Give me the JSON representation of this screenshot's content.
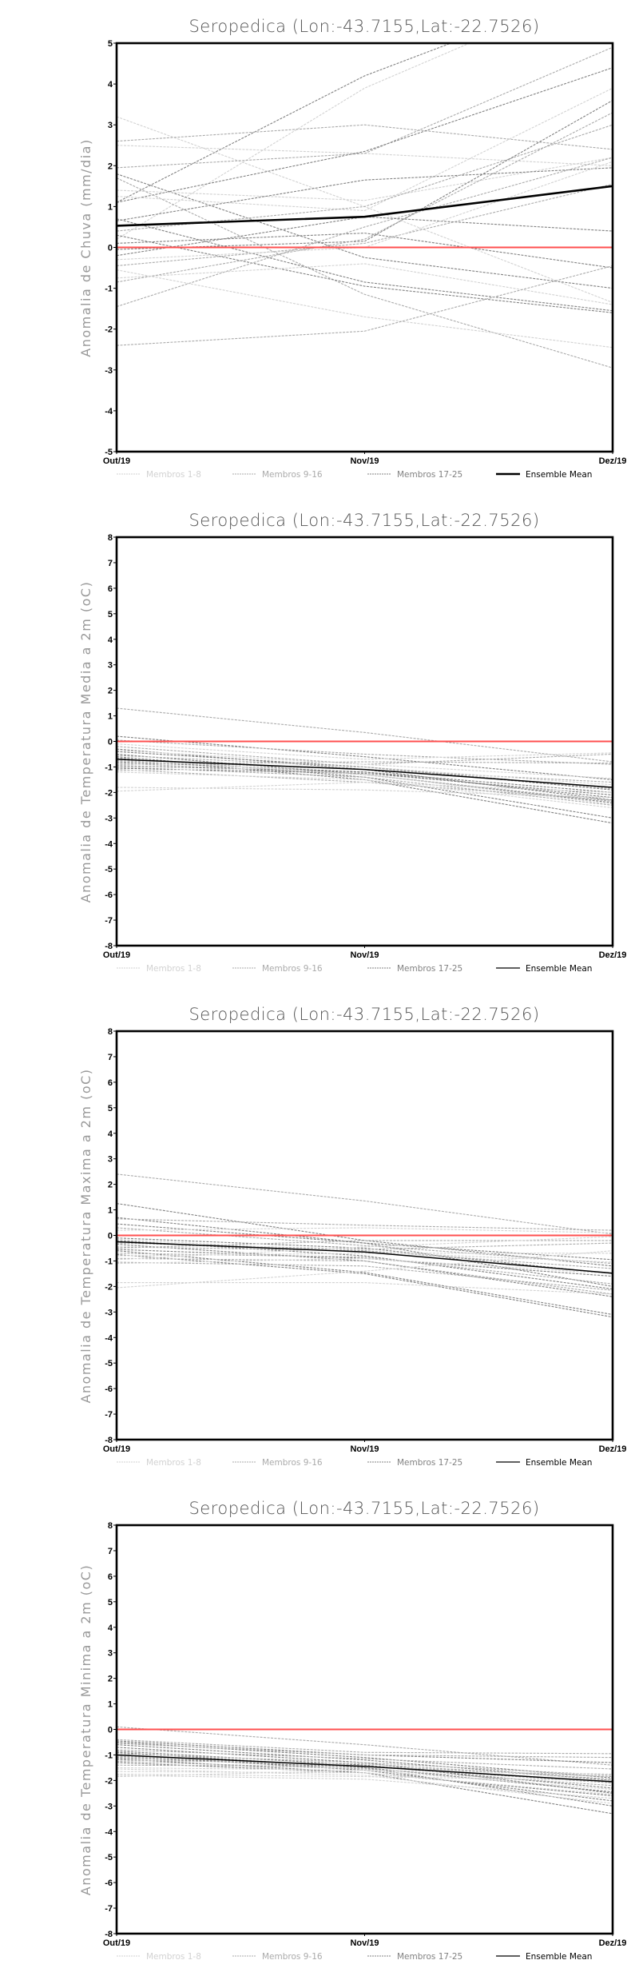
{
  "chart_data": [
    {
      "type": "line",
      "title": "Seropedica (Lon:-43.7155,Lat:-22.7526)",
      "ylabel": "Anomalia de Chuva (mm/dia)",
      "x": [
        "Out/19",
        "Nov/19",
        "Dez/19"
      ],
      "ylim": [
        -5,
        5
      ],
      "legend": [
        "Membros 1-8",
        "Membros 9-16",
        "Membros 17-25",
        "Ensemble Mean"
      ],
      "mean_bold": true,
      "ensemble_mean": [
        0.53,
        0.75,
        1.5
      ],
      "reference_line": 0,
      "members": [
        {
          "g": 2,
          "v": [
            1.1,
            4.2,
            6.5
          ]
        },
        {
          "g": 0,
          "v": [
            0.2,
            3.9,
            6.5
          ]
        },
        {
          "g": 0,
          "v": [
            3.2,
            1.0,
            -1.35
          ]
        },
        {
          "g": 1,
          "v": [
            2.6,
            3.0,
            2.4
          ]
        },
        {
          "g": 0,
          "v": [
            2.5,
            2.3,
            2.0
          ]
        },
        {
          "g": 1,
          "v": [
            1.95,
            2.3,
            4.9
          ]
        },
        {
          "g": 2,
          "v": [
            1.1,
            2.35,
            4.4
          ]
        },
        {
          "g": 2,
          "v": [
            1.8,
            -0.25,
            -1.0
          ]
        },
        {
          "g": 1,
          "v": [
            1.7,
            -1.15,
            -2.95
          ]
        },
        {
          "g": 0,
          "v": [
            1.4,
            1.15,
            2.2
          ]
        },
        {
          "g": 0,
          "v": [
            1.25,
            0.9,
            3.9
          ]
        },
        {
          "g": 2,
          "v": [
            0.65,
            1.65,
            1.95
          ]
        },
        {
          "g": 1,
          "v": [
            0.4,
            1.0,
            3.0
          ]
        },
        {
          "g": 2,
          "v": [
            0.7,
            -0.85,
            -1.55
          ]
        },
        {
          "g": 2,
          "v": [
            0.3,
            -0.95,
            -1.6
          ]
        },
        {
          "g": 2,
          "v": [
            0.1,
            0.35,
            -0.5
          ]
        },
        {
          "g": 2,
          "v": [
            -0.05,
            0.15,
            3.6
          ]
        },
        {
          "g": 1,
          "v": [
            -1.45,
            0.5,
            2.2
          ]
        },
        {
          "g": 2,
          "v": [
            -0.2,
            0.75,
            0.4
          ]
        },
        {
          "g": 1,
          "v": [
            -0.45,
            0.1,
            1.55
          ]
        },
        {
          "g": 0,
          "v": [
            -0.75,
            -0.4,
            -1.4
          ]
        },
        {
          "g": 1,
          "v": [
            -0.85,
            0.2,
            3.3
          ]
        },
        {
          "g": 0,
          "v": [
            -0.55,
            -1.7,
            -2.45
          ]
        },
        {
          "g": 1,
          "v": [
            -2.4,
            -2.05,
            -0.45
          ]
        },
        {
          "g": 0,
          "v": [
            -0.3,
            0.0,
            2.1
          ]
        }
      ]
    },
    {
      "type": "line",
      "title": "Seropedica (Lon:-43.7155,Lat:-22.7526)",
      "ylabel": "Anomalia de Temperatura Media a 2m (oC)",
      "x": [
        "Out/19",
        "Nov/19",
        "Dez/19"
      ],
      "ylim": [
        -8,
        8
      ],
      "legend": [
        "Membros 1-8",
        "Membros 9-16",
        "Membros 17-25",
        "Ensemble Mean"
      ],
      "mean_bold": false,
      "ensemble_mean": [
        -0.7,
        -1.1,
        -1.8
      ],
      "reference_line": 0,
      "members": [
        {
          "g": 1,
          "v": [
            1.3,
            0.35,
            -0.8
          ]
        },
        {
          "g": 2,
          "v": [
            0.2,
            -0.6,
            -1.5
          ]
        },
        {
          "g": 1,
          "v": [
            0.05,
            -0.5,
            -0.9
          ]
        },
        {
          "g": 0,
          "v": [
            -0.1,
            -0.7,
            -0.45
          ]
        },
        {
          "g": 1,
          "v": [
            -0.2,
            -0.9,
            -0.5
          ]
        },
        {
          "g": 2,
          "v": [
            -0.3,
            -1.1,
            -2.3
          ]
        },
        {
          "g": 2,
          "v": [
            -0.4,
            -1.0,
            -1.9
          ]
        },
        {
          "g": 2,
          "v": [
            -0.5,
            -1.3,
            -2.4
          ]
        },
        {
          "g": 2,
          "v": [
            -0.6,
            -1.4,
            -3.0
          ]
        },
        {
          "g": 2,
          "v": [
            -0.65,
            -1.5,
            -3.2
          ]
        },
        {
          "g": 1,
          "v": [
            -0.75,
            -1.1,
            -1.6
          ]
        },
        {
          "g": 2,
          "v": [
            -0.8,
            -1.2,
            -2.2
          ]
        },
        {
          "g": 1,
          "v": [
            -0.85,
            -1.3,
            -2.35
          ]
        },
        {
          "g": 1,
          "v": [
            -0.9,
            -0.8,
            -0.85
          ]
        },
        {
          "g": 2,
          "v": [
            -0.95,
            -1.2,
            -2.0
          ]
        },
        {
          "g": 1,
          "v": [
            -1.0,
            -1.4,
            -2.5
          ]
        },
        {
          "g": 2,
          "v": [
            -1.05,
            -1.25,
            -2.1
          ]
        },
        {
          "g": 1,
          "v": [
            -1.1,
            -1.6,
            -2.3
          ]
        },
        {
          "g": 0,
          "v": [
            -1.15,
            -1.0,
            -1.7
          ]
        },
        {
          "g": 0,
          "v": [
            -1.2,
            -1.5,
            -2.6
          ]
        },
        {
          "g": 0,
          "v": [
            -0.7,
            -1.3,
            -2.45
          ]
        },
        {
          "g": 0,
          "v": [
            -1.8,
            -1.9,
            -2.2
          ]
        },
        {
          "g": 0,
          "v": [
            -1.95,
            -1.6,
            -2.0
          ]
        },
        {
          "g": 0,
          "v": [
            -0.35,
            -0.9,
            -1.45
          ]
        },
        {
          "g": 1,
          "v": [
            -0.55,
            -1.0,
            -1.85
          ]
        }
      ]
    },
    {
      "type": "line",
      "title": "Seropedica (Lon:-43.7155,Lat:-22.7526)",
      "ylabel": "Anomalia de Temperatura Maxima a 2m (oC)",
      "x": [
        "Out/19",
        "Nov/19",
        "Dez/19"
      ],
      "ylim": [
        -8,
        8
      ],
      "legend": [
        "Membros 1-8",
        "Membros 9-16",
        "Membros 17-25",
        "Ensemble Mean"
      ],
      "mean_bold": false,
      "ensemble_mean": [
        -0.25,
        -0.65,
        -1.48
      ],
      "reference_line": 0,
      "members": [
        {
          "g": 1,
          "v": [
            2.4,
            1.35,
            0.05
          ]
        },
        {
          "g": 2,
          "v": [
            1.25,
            -0.2,
            -1.2
          ]
        },
        {
          "g": 2,
          "v": [
            0.7,
            -0.3,
            -0.95
          ]
        },
        {
          "g": 1,
          "v": [
            0.65,
            0.4,
            0.2
          ]
        },
        {
          "g": 2,
          "v": [
            0.45,
            -0.3,
            -2.0
          ]
        },
        {
          "g": 1,
          "v": [
            0.3,
            -0.4,
            -1.1
          ]
        },
        {
          "g": 0,
          "v": [
            0.2,
            0.3,
            0.1
          ]
        },
        {
          "g": 2,
          "v": [
            -0.1,
            -0.5,
            -1.5
          ]
        },
        {
          "g": 2,
          "v": [
            -0.2,
            -0.8,
            -2.1
          ]
        },
        {
          "g": 1,
          "v": [
            -0.3,
            -0.55,
            -0.3
          ]
        },
        {
          "g": 2,
          "v": [
            -0.35,
            -1.0,
            -2.4
          ]
        },
        {
          "g": 1,
          "v": [
            -0.45,
            -0.6,
            -1.3
          ]
        },
        {
          "g": 1,
          "v": [
            -0.5,
            -0.2,
            -0.2
          ]
        },
        {
          "g": 2,
          "v": [
            -0.55,
            -0.9,
            -1.6
          ]
        },
        {
          "g": 2,
          "v": [
            -0.6,
            -1.45,
            -3.1
          ]
        },
        {
          "g": 1,
          "v": [
            -0.7,
            -0.85,
            -1.9
          ]
        },
        {
          "g": 2,
          "v": [
            -0.75,
            -1.5,
            -3.2
          ]
        },
        {
          "g": 0,
          "v": [
            -0.8,
            -0.7,
            -0.7
          ]
        },
        {
          "g": 1,
          "v": [
            -0.9,
            -1.0,
            -2.3
          ]
        },
        {
          "g": 0,
          "v": [
            -0.95,
            -0.45,
            -0.05
          ]
        },
        {
          "g": 1,
          "v": [
            -1.05,
            -1.2,
            -2.15
          ]
        },
        {
          "g": 0,
          "v": [
            -1.1,
            -0.9,
            -1.5
          ]
        },
        {
          "g": 0,
          "v": [
            -1.85,
            -1.85,
            -2.3
          ]
        },
        {
          "g": 0,
          "v": [
            -2.05,
            -1.4,
            -0.6
          ]
        },
        {
          "g": 0,
          "v": [
            -0.15,
            -0.65,
            -1.05
          ]
        }
      ]
    },
    {
      "type": "line",
      "title": "Seropedica (Lon:-43.7155,Lat:-22.7526)",
      "ylabel": "Anomalia de Temperatura Minima a 2m (oC)",
      "x": [
        "Out/19",
        "Nov/19",
        "Dez/19"
      ],
      "ylim": [
        -8,
        8
      ],
      "legend": [
        "Membros 1-8",
        "Membros 9-16",
        "Membros 17-25",
        "Ensemble Mean"
      ],
      "mean_bold": false,
      "ensemble_mean": [
        -1.0,
        -1.45,
        -2.05
      ],
      "reference_line": 0,
      "members": [
        {
          "g": 1,
          "v": [
            0.1,
            -0.6,
            -1.4
          ]
        },
        {
          "g": 1,
          "v": [
            -0.4,
            -0.9,
            -0.95
          ]
        },
        {
          "g": 2,
          "v": [
            -0.45,
            -1.0,
            -1.3
          ]
        },
        {
          "g": 2,
          "v": [
            -0.5,
            -1.1,
            -1.9
          ]
        },
        {
          "g": 1,
          "v": [
            -0.55,
            -1.0,
            -1.1
          ]
        },
        {
          "g": 2,
          "v": [
            -0.6,
            -1.2,
            -2.0
          ]
        },
        {
          "g": 2,
          "v": [
            -0.7,
            -1.3,
            -2.5
          ]
        },
        {
          "g": 1,
          "v": [
            -0.8,
            -1.15,
            -1.55
          ]
        },
        {
          "g": 2,
          "v": [
            -0.85,
            -1.4,
            -2.3
          ]
        },
        {
          "g": 2,
          "v": [
            -0.9,
            -1.5,
            -2.45
          ]
        },
        {
          "g": 1,
          "v": [
            -0.95,
            -1.3,
            -1.8
          ]
        },
        {
          "g": 2,
          "v": [
            -1.0,
            -1.6,
            -2.8
          ]
        },
        {
          "g": 1,
          "v": [
            -1.05,
            -1.45,
            -2.1
          ]
        },
        {
          "g": 2,
          "v": [
            -1.1,
            -1.5,
            -3.0
          ]
        },
        {
          "g": 2,
          "v": [
            -1.15,
            -1.7,
            -3.3
          ]
        },
        {
          "g": 1,
          "v": [
            -1.2,
            -1.35,
            -1.95
          ]
        },
        {
          "g": 1,
          "v": [
            -1.25,
            -1.55,
            -2.2
          ]
        },
        {
          "g": 2,
          "v": [
            -1.3,
            -1.7,
            -2.6
          ]
        },
        {
          "g": 1,
          "v": [
            -1.4,
            -1.45,
            -1.85
          ]
        },
        {
          "g": 0,
          "v": [
            -1.5,
            -1.6,
            -2.35
          ]
        },
        {
          "g": 0,
          "v": [
            -1.55,
            -1.8,
            -2.9
          ]
        },
        {
          "g": 0,
          "v": [
            -1.65,
            -1.7,
            -2.55
          ]
        },
        {
          "g": 0,
          "v": [
            -1.75,
            -1.85,
            -2.0
          ]
        },
        {
          "g": 0,
          "v": [
            -1.8,
            -1.95,
            -2.7
          ]
        },
        {
          "g": 0,
          "v": [
            -1.85,
            -1.6,
            -1.75
          ]
        }
      ]
    }
  ],
  "colors": {
    "group_1_8": "#d2d2d2",
    "group_9_16": "#ababab",
    "group_17_25": "#828282",
    "ensemble_mean": "#000000",
    "reference_line": "#ff4f4f",
    "frame": "#000000"
  }
}
